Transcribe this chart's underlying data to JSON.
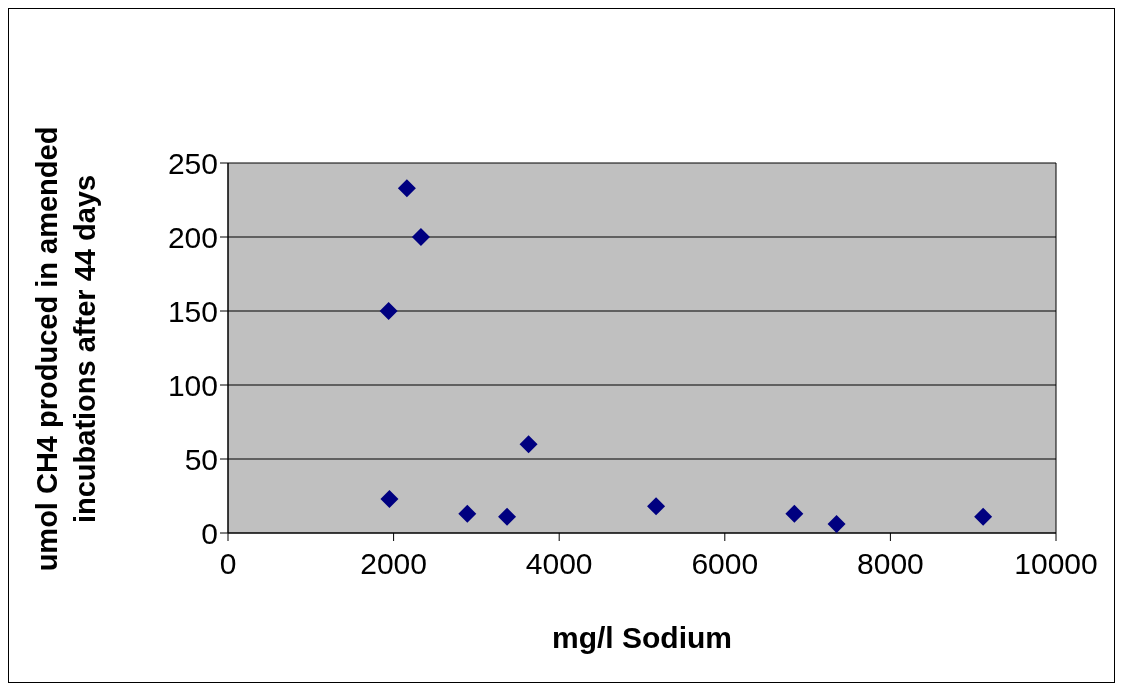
{
  "chart_data": {
    "type": "scatter",
    "xlabel": "mg/l Sodium",
    "ylabel": "umol CH4 produced in amended incubations after 44 days",
    "x": [
      1950,
      1940,
      2160,
      2330,
      2890,
      3370,
      3630,
      5170,
      6840,
      7350,
      9120
    ],
    "series": [
      {
        "color": "#000080",
        "values": [
          23,
          150,
          233,
          200,
          13,
          11,
          60,
          18,
          13,
          6,
          11
        ]
      }
    ],
    "xlim": [
      0,
      10000
    ],
    "xticks": [
      0,
      2000,
      4000,
      6000,
      8000,
      10000
    ],
    "ylim": [
      0,
      250
    ],
    "yticks": [
      0,
      50,
      100,
      150,
      200,
      250
    ],
    "grid": "y",
    "legend": false,
    "marker": "diamond"
  }
}
